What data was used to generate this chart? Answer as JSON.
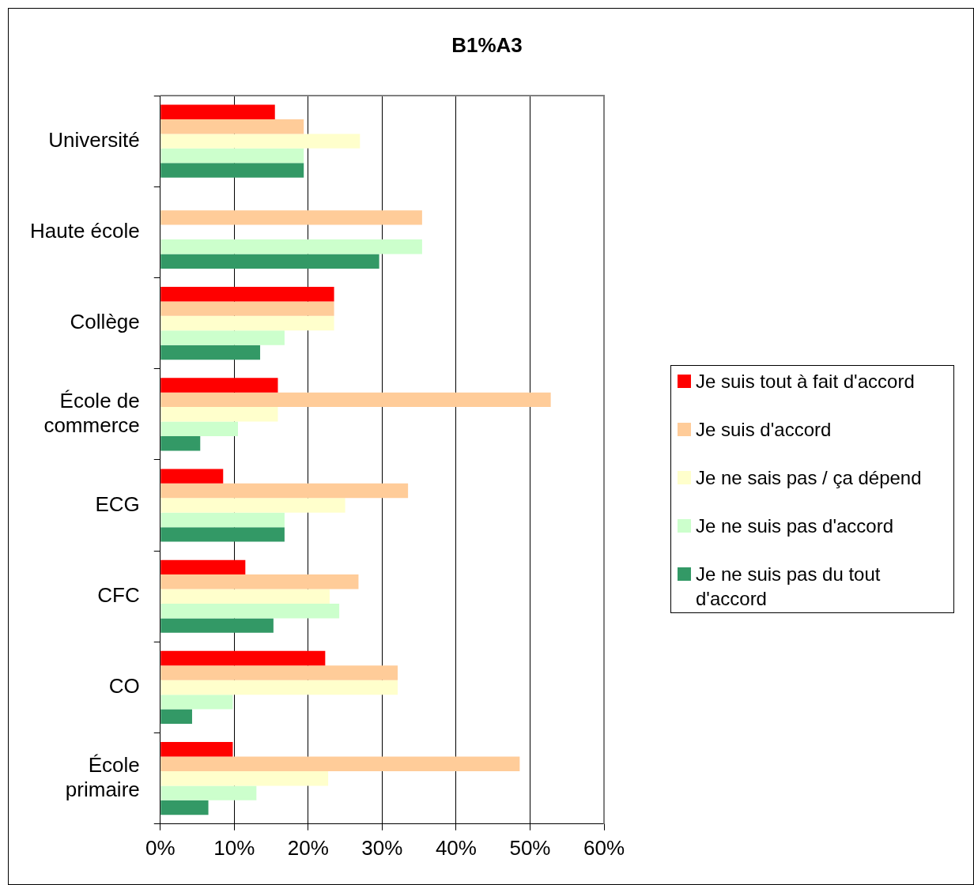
{
  "chart_data": {
    "type": "bar",
    "orientation": "horizontal",
    "title": "B1%A3",
    "categories": [
      "Université",
      "Haute école",
      "Collège",
      "École de commerce",
      "ECG",
      "CFC",
      "CO",
      "École primaire"
    ],
    "series": [
      {
        "name": "Je suis tout à fait d'accord",
        "color": "#ff0000",
        "values": [
          15.5,
          0,
          23.5,
          15.9,
          8.5,
          11.5,
          22.3,
          9.8
        ]
      },
      {
        "name": "Je suis d'accord",
        "color": "#ffcc99",
        "values": [
          19.4,
          35.4,
          23.5,
          52.8,
          33.5,
          26.8,
          32.1,
          48.6
        ]
      },
      {
        "name": "Je ne sais pas / ça dépend",
        "color": "#ffffcc",
        "values": [
          27,
          0,
          23.5,
          15.9,
          25,
          22.9,
          32.1,
          22.7
        ]
      },
      {
        "name": "Je ne suis pas d'accord",
        "color": "#ccffcc",
        "values": [
          19.4,
          35.4,
          16.8,
          10.5,
          16.8,
          24.2,
          9.8,
          13
        ]
      },
      {
        "name": "Je ne suis pas du tout d'accord",
        "color": "#339966",
        "values": [
          19.4,
          29.6,
          13.5,
          5.4,
          16.8,
          15.3,
          4.3,
          6.5
        ]
      }
    ],
    "xlim": [
      0,
      60
    ],
    "xticks": [
      {
        "value": 0,
        "label": "0%"
      },
      {
        "value": 10,
        "label": "10%"
      },
      {
        "value": 20,
        "label": "20%"
      },
      {
        "value": 30,
        "label": "30%"
      },
      {
        "value": 40,
        "label": "40%"
      },
      {
        "value": 50,
        "label": "50%"
      },
      {
        "value": 60,
        "label": "60%"
      }
    ],
    "grid": "x",
    "legend": "right"
  }
}
